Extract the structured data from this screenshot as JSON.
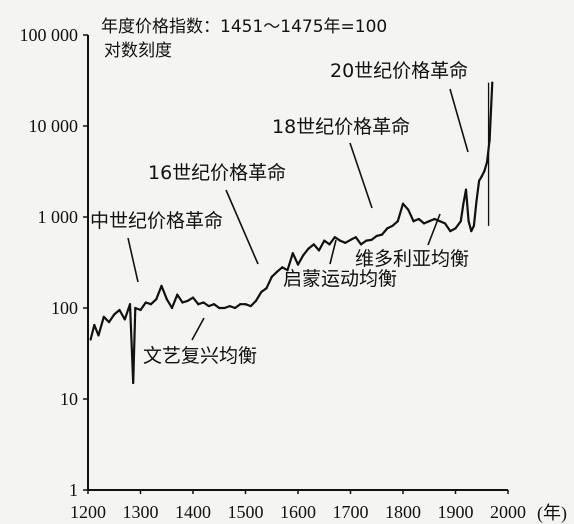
{
  "chart_data": {
    "type": "line",
    "title": "年度价格指数：1451～1475年=100",
    "ylabel": "对数刻度",
    "xlabel": "(年)",
    "log_y": true,
    "xlim": [
      1200,
      2000
    ],
    "ylim": [
      1,
      100000
    ],
    "xticks": [
      1200,
      1300,
      1400,
      1500,
      1600,
      1700,
      1800,
      1900,
      2000
    ],
    "yticks": [
      {
        "value": 1,
        "label": "1"
      },
      {
        "value": 10,
        "label": "10"
      },
      {
        "value": 100,
        "label": "100"
      },
      {
        "value": 1000,
        "label": "1 000"
      },
      {
        "value": 10000,
        "label": "10 000"
      },
      {
        "value": 100000,
        "label": "100 000"
      }
    ],
    "series": [
      {
        "x": [
          1205,
          1212,
          1220,
          1230,
          1240,
          1250,
          1260,
          1270,
          1280,
          1286,
          1290,
          1300,
          1310,
          1320,
          1330,
          1340,
          1350,
          1360,
          1370,
          1380,
          1390,
          1400,
          1410,
          1420,
          1430,
          1440,
          1450,
          1460,
          1470,
          1480,
          1490,
          1500,
          1510,
          1520,
          1530,
          1540,
          1550,
          1560,
          1570,
          1580,
          1590,
          1600,
          1610,
          1620,
          1630,
          1640,
          1650,
          1660,
          1670,
          1680,
          1690,
          1700,
          1710,
          1720,
          1730,
          1740,
          1750,
          1760,
          1770,
          1780,
          1790,
          1800,
          1810,
          1820,
          1830,
          1840,
          1850,
          1860,
          1870,
          1880,
          1890,
          1900,
          1910,
          1915,
          1920,
          1925,
          1930,
          1935,
          1940,
          1945,
          1950,
          1955,
          1960,
          1965,
          1970
        ],
        "values": [
          45,
          65,
          50,
          80,
          70,
          85,
          95,
          75,
          110,
          15,
          100,
          95,
          115,
          110,
          125,
          175,
          125,
          100,
          140,
          115,
          120,
          130,
          110,
          115,
          105,
          110,
          100,
          100,
          105,
          100,
          110,
          110,
          105,
          120,
          150,
          165,
          220,
          250,
          280,
          260,
          400,
          300,
          380,
          450,
          500,
          430,
          550,
          500,
          600,
          550,
          520,
          560,
          600,
          500,
          550,
          560,
          620,
          640,
          750,
          800,
          900,
          1400,
          1200,
          900,
          950,
          850,
          900,
          950,
          900,
          850,
          700,
          750,
          900,
          1400,
          2000,
          900,
          700,
          800,
          1500,
          2500,
          2800,
          3200,
          4000,
          7000,
          30000
        ]
      }
    ],
    "annotations": [
      {
        "text": "中世纪价格革命",
        "x": 1328,
        "y": 200
      },
      {
        "text": "16世纪价格革命",
        "x": 1548,
        "y": 180
      },
      {
        "text": "18世纪价格革命",
        "x": 1752,
        "y": 640
      },
      {
        "text": "20世纪价格革命",
        "x": 1932,
        "y": 1500
      },
      {
        "text": "文艺复兴均衡",
        "x": 1440,
        "y": 90
      },
      {
        "text": "启蒙运动均衡",
        "x": 1660,
        "y": 480
      },
      {
        "text": "维多利亚均衡",
        "x": 1860,
        "y": 800
      }
    ]
  }
}
